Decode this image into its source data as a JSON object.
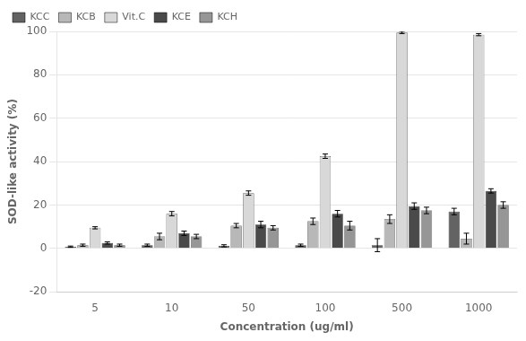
{
  "chart_data": {
    "type": "bar",
    "categories": [
      "5",
      "10",
      "50",
      "100",
      "500",
      "1000"
    ],
    "series": [
      {
        "name": "KCC",
        "color": "#636363",
        "values": [
          0.8,
          1.5,
          1.2,
          1.5,
          1.5,
          17.0
        ],
        "errors": [
          0.3,
          0.5,
          0.5,
          0.5,
          3.0,
          1.5
        ]
      },
      {
        "name": "KCB",
        "color": "#b8b8b8",
        "values": [
          1.5,
          5.5,
          10.5,
          12.5,
          13.5,
          4.5
        ],
        "errors": [
          0.5,
          1.5,
          1.0,
          1.5,
          2.0,
          2.5
        ]
      },
      {
        "name": "Vit.C",
        "color": "#d8d8d8",
        "values": [
          9.5,
          16.0,
          25.5,
          42.5,
          99.5,
          98.5
        ],
        "errors": [
          0.5,
          1.0,
          1.0,
          1.0,
          0.5,
          0.5
        ]
      },
      {
        "name": "KCE",
        "color": "#4a4a4a",
        "values": [
          2.5,
          7.0,
          11.0,
          16.0,
          19.5,
          26.5
        ],
        "errors": [
          0.5,
          1.0,
          1.5,
          1.5,
          1.5,
          1.0
        ]
      },
      {
        "name": "KCH",
        "color": "#969696",
        "values": [
          1.5,
          5.5,
          9.5,
          10.5,
          17.5,
          20.0
        ],
        "errors": [
          0.5,
          1.0,
          1.0,
          2.0,
          1.5,
          1.5
        ]
      }
    ],
    "xlabel": "Concentration (ug/ml)",
    "ylabel": "SOD-like activity (%)",
    "ylim": [
      -20,
      100
    ],
    "yticks": [
      -20,
      0,
      20,
      40,
      60,
      80,
      100
    ],
    "grid": true,
    "legend": "upper left"
  }
}
